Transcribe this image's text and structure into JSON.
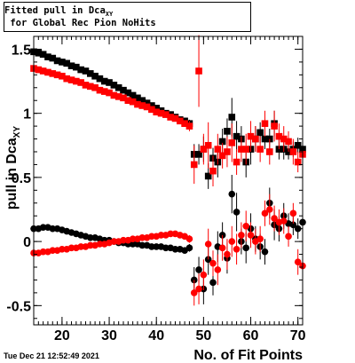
{
  "header": {
    "title_main": "Fitted pull in Dca",
    "title_sub": "XY",
    "title_tail": " for Global Rec Pion NoHits"
  },
  "footer": {
    "timestamp": "Tue Dec 21 12:52:49 2021"
  },
  "chart_data": {
    "type": "scatter",
    "xlabel": "No. of Fit Points",
    "ylabel_main": "pull in Dca",
    "ylabel_sub": "XY",
    "xlim": [
      14,
      71
    ],
    "ylim": [
      -0.65,
      1.6
    ],
    "xticks": [
      20,
      30,
      40,
      50,
      60,
      70
    ],
    "xtick_labels": [
      "20",
      "30",
      "40",
      "50",
      "60",
      "70"
    ],
    "yticks": [
      -0.5,
      0,
      0.5,
      1,
      1.5
    ],
    "ytick_labels": [
      "-0.5",
      "0",
      "0.5",
      "1",
      "1.5"
    ],
    "colors": {
      "black": "#000000",
      "red": "#ff0000"
    },
    "series": [
      {
        "color": "#000000",
        "marker": "square",
        "x": [
          14,
          15,
          16,
          17,
          18,
          19,
          20,
          21,
          22,
          23,
          24,
          25,
          26,
          27,
          28,
          29,
          30,
          31,
          32,
          33,
          34,
          35,
          36,
          37,
          38,
          39,
          40,
          41,
          42,
          43,
          44,
          45,
          46,
          47,
          48,
          49,
          50,
          51,
          52,
          53,
          54,
          55,
          56,
          57,
          58,
          59,
          60,
          61,
          62,
          63,
          64,
          65,
          66,
          67,
          68,
          69,
          70,
          71
        ],
        "y": [
          1.48,
          1.47,
          1.46,
          1.44,
          1.43,
          1.41,
          1.4,
          1.39,
          1.37,
          1.36,
          1.34,
          1.33,
          1.31,
          1.29,
          1.27,
          1.25,
          1.24,
          1.22,
          1.2,
          1.18,
          1.16,
          1.14,
          1.12,
          1.1,
          1.08,
          1.06,
          1.04,
          1.02,
          1.0,
          0.99,
          0.97,
          0.95,
          0.94,
          0.92,
          0.68,
          0.68,
          0.72,
          0.51,
          0.65,
          0.62,
          0.78,
          0.86,
          0.97,
          0.82,
          0.8,
          0.62,
          0.72,
          0.8,
          0.85,
          0.8,
          0.8,
          0.92,
          0.72,
          0.72,
          0.7,
          0.72,
          0.75,
          0.72
        ],
        "err": [
          0.01,
          0.01,
          0.01,
          0.01,
          0.01,
          0.01,
          0.01,
          0.01,
          0.01,
          0.01,
          0.01,
          0.01,
          0.01,
          0.01,
          0.01,
          0.01,
          0.01,
          0.01,
          0.01,
          0.01,
          0.01,
          0.01,
          0.01,
          0.01,
          0.01,
          0.01,
          0.01,
          0.01,
          0.01,
          0.02,
          0.02,
          0.02,
          0.02,
          0.03,
          0.08,
          0.08,
          0.1,
          0.1,
          0.08,
          0.12,
          0.1,
          0.1,
          0.15,
          0.12,
          0.1,
          0.12,
          0.12,
          0.1,
          0.08,
          0.08,
          0.08,
          0.1,
          0.08,
          0.08,
          0.06,
          0.06,
          0.06,
          0.06
        ]
      },
      {
        "color": "#ff0000",
        "marker": "square",
        "x": [
          14,
          15,
          16,
          17,
          18,
          19,
          20,
          21,
          22,
          23,
          24,
          25,
          26,
          27,
          28,
          29,
          30,
          31,
          32,
          33,
          34,
          35,
          36,
          37,
          38,
          39,
          40,
          41,
          42,
          43,
          44,
          45,
          46,
          47,
          48,
          49,
          50,
          51,
          52,
          53,
          54,
          55,
          56,
          57,
          58,
          59,
          60,
          61,
          62,
          63,
          64,
          65,
          66,
          67,
          68,
          69,
          70,
          71
        ],
        "y": [
          1.35,
          1.34,
          1.33,
          1.32,
          1.31,
          1.3,
          1.29,
          1.27,
          1.26,
          1.25,
          1.24,
          1.22,
          1.21,
          1.2,
          1.18,
          1.17,
          1.16,
          1.14,
          1.13,
          1.12,
          1.1,
          1.09,
          1.07,
          1.06,
          1.05,
          1.03,
          1.01,
          1.0,
          0.99,
          0.97,
          0.96,
          0.94,
          0.92,
          0.9,
          0.6,
          1.33,
          0.72,
          0.75,
          0.55,
          0.72,
          0.67,
          0.7,
          0.77,
          0.62,
          0.72,
          0.72,
          0.82,
          0.8,
          0.72,
          0.92,
          0.7,
          0.9,
          0.82,
          0.8,
          0.78,
          0.7,
          0.62,
          0.68
        ],
        "err": [
          0.01,
          0.01,
          0.01,
          0.01,
          0.01,
          0.01,
          0.01,
          0.01,
          0.01,
          0.01,
          0.01,
          0.01,
          0.01,
          0.01,
          0.01,
          0.01,
          0.01,
          0.01,
          0.01,
          0.01,
          0.01,
          0.01,
          0.01,
          0.01,
          0.01,
          0.01,
          0.01,
          0.01,
          0.01,
          0.02,
          0.02,
          0.02,
          0.02,
          0.04,
          0.15,
          0.28,
          0.12,
          0.18,
          0.12,
          0.12,
          0.1,
          0.12,
          0.15,
          0.1,
          0.1,
          0.12,
          0.12,
          0.1,
          0.1,
          0.1,
          0.1,
          0.12,
          0.1,
          0.1,
          0.08,
          0.1,
          0.08,
          0.08
        ]
      },
      {
        "color": "#000000",
        "marker": "circle",
        "x": [
          14,
          15,
          16,
          17,
          18,
          19,
          20,
          21,
          22,
          23,
          24,
          25,
          26,
          27,
          28,
          29,
          30,
          31,
          32,
          33,
          34,
          35,
          36,
          37,
          38,
          39,
          40,
          41,
          42,
          43,
          44,
          45,
          46,
          47,
          48,
          49,
          50,
          51,
          52,
          53,
          54,
          55,
          56,
          57,
          58,
          59,
          60,
          61,
          62,
          63,
          64,
          65,
          66,
          67,
          68,
          69,
          70,
          71
        ],
        "y": [
          0.1,
          0.1,
          0.11,
          0.11,
          0.1,
          0.1,
          0.09,
          0.08,
          0.07,
          0.06,
          0.05,
          0.04,
          0.03,
          0.03,
          0.02,
          0.01,
          0.01,
          0.0,
          -0.01,
          -0.01,
          -0.02,
          -0.02,
          -0.02,
          -0.03,
          -0.03,
          -0.04,
          -0.04,
          -0.04,
          -0.05,
          -0.05,
          -0.06,
          -0.06,
          -0.07,
          -0.05,
          -0.3,
          -0.22,
          -0.37,
          -0.14,
          -0.32,
          -0.04,
          0.05,
          -0.13,
          0.37,
          0.23,
          0.0,
          -0.05,
          0.1,
          0.02,
          -0.04,
          -0.08,
          0.3,
          0.13,
          0.1,
          0.2,
          0.14,
          0.13,
          0.1,
          0.15
        ],
        "err": [
          0.01,
          0.01,
          0.01,
          0.01,
          0.01,
          0.01,
          0.01,
          0.01,
          0.01,
          0.01,
          0.01,
          0.01,
          0.01,
          0.01,
          0.01,
          0.01,
          0.01,
          0.01,
          0.01,
          0.01,
          0.01,
          0.01,
          0.01,
          0.01,
          0.01,
          0.01,
          0.01,
          0.01,
          0.01,
          0.01,
          0.02,
          0.02,
          0.02,
          0.03,
          0.1,
          0.1,
          0.12,
          0.12,
          0.1,
          0.12,
          0.1,
          0.12,
          0.15,
          0.15,
          0.1,
          0.12,
          0.12,
          0.1,
          0.1,
          0.1,
          0.12,
          0.12,
          0.1,
          0.1,
          0.08,
          0.08,
          0.08,
          0.08
        ]
      },
      {
        "color": "#ff0000",
        "marker": "circle",
        "x": [
          14,
          15,
          16,
          17,
          18,
          19,
          20,
          21,
          22,
          23,
          24,
          25,
          26,
          27,
          28,
          29,
          30,
          31,
          32,
          33,
          34,
          35,
          36,
          37,
          38,
          39,
          40,
          41,
          42,
          43,
          44,
          45,
          46,
          47,
          48,
          49,
          50,
          51,
          52,
          53,
          54,
          55,
          56,
          57,
          58,
          59,
          60,
          61,
          62,
          63,
          64,
          65,
          66,
          67,
          68,
          69,
          70,
          71
        ],
        "y": [
          -0.09,
          -0.09,
          -0.08,
          -0.08,
          -0.07,
          -0.07,
          -0.06,
          -0.06,
          -0.05,
          -0.05,
          -0.04,
          -0.04,
          -0.03,
          -0.03,
          -0.02,
          -0.02,
          -0.01,
          0.0,
          0.0,
          0.01,
          0.01,
          0.02,
          0.02,
          0.03,
          0.03,
          0.04,
          0.04,
          0.05,
          0.05,
          0.06,
          0.06,
          0.05,
          0.04,
          0.02,
          -0.4,
          -0.37,
          -0.26,
          -0.02,
          -0.17,
          -0.22,
          -0.05,
          -0.1,
          0.0,
          -0.06,
          0.05,
          0.12,
          0.05,
          0.0,
          0.02,
          0.22,
          0.25,
          0.18,
          0.15,
          0.16,
          0.04,
          0.22,
          -0.16,
          -0.19
        ],
        "err": [
          0.01,
          0.01,
          0.01,
          0.01,
          0.01,
          0.01,
          0.01,
          0.01,
          0.01,
          0.01,
          0.01,
          0.01,
          0.01,
          0.01,
          0.01,
          0.01,
          0.01,
          0.01,
          0.01,
          0.01,
          0.01,
          0.01,
          0.01,
          0.01,
          0.01,
          0.01,
          0.01,
          0.01,
          0.01,
          0.01,
          0.02,
          0.02,
          0.02,
          0.03,
          0.1,
          0.12,
          0.12,
          0.12,
          0.1,
          0.12,
          0.1,
          0.12,
          0.12,
          0.12,
          0.1,
          0.12,
          0.1,
          0.1,
          0.1,
          0.1,
          0.12,
          0.1,
          0.1,
          0.1,
          0.08,
          0.08,
          0.1,
          0.1
        ]
      }
    ]
  }
}
